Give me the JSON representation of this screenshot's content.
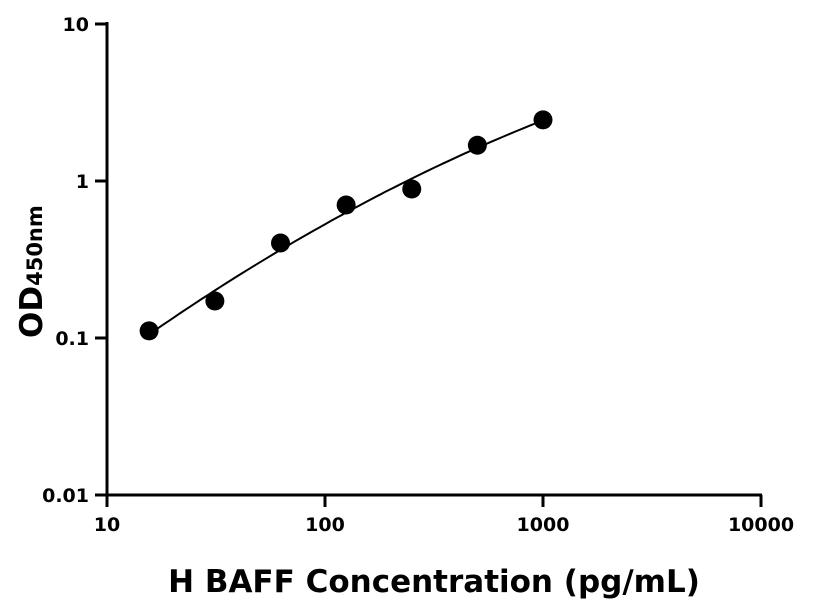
{
  "chart_data": {
    "type": "scatter",
    "title": "",
    "xlabel": "H BAFF Concentration (pg/mL)",
    "ylabel_main": "OD",
    "ylabel_sub": "450nm",
    "x_scale": "log",
    "y_scale": "log",
    "xlim": [
      10,
      10000
    ],
    "ylim": [
      0.01,
      10
    ],
    "x_ticks": [
      10,
      100,
      1000,
      10000
    ],
    "x_tick_labels": [
      "10",
      "100",
      "1000",
      "10000"
    ],
    "y_ticks": [
      0.01,
      0.1,
      1,
      10
    ],
    "y_tick_labels": [
      "0.01",
      "0.1",
      "1",
      "10"
    ],
    "grid": false,
    "fit_curve": true,
    "series": [
      {
        "x": [
          15.6,
          31.25,
          62.5,
          125,
          250,
          500,
          1000
        ],
        "y": [
          0.111,
          0.172,
          0.403,
          0.703,
          0.889,
          1.69,
          2.45
        ]
      }
    ],
    "colors": {
      "points": "#000000",
      "curve": "#000000"
    }
  }
}
